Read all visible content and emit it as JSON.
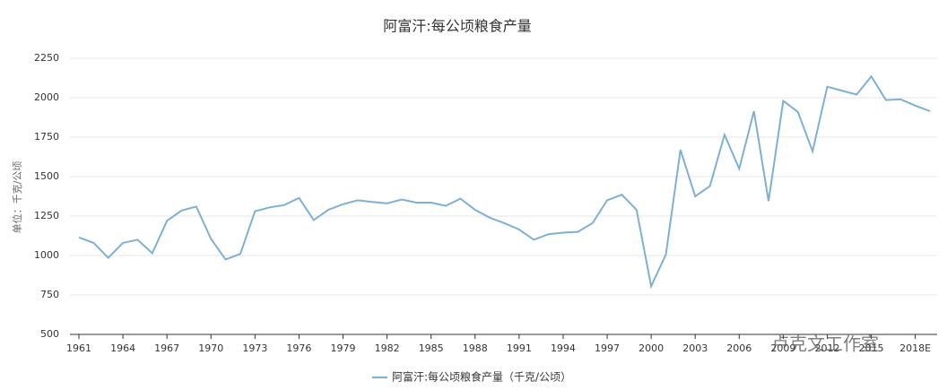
{
  "chart_data": {
    "type": "line",
    "title": "阿富汗:每公顷粮食产量",
    "y_axis_label": "单位：千克/公顷",
    "watermark": "卢克文工作室",
    "categories": [
      "1961",
      null,
      null,
      "1964",
      null,
      null,
      "1967",
      null,
      null,
      "1970",
      null,
      null,
      "1973",
      null,
      null,
      "1976",
      null,
      null,
      "1979",
      null,
      null,
      "1982",
      null,
      null,
      "1985",
      null,
      null,
      "1988",
      null,
      null,
      "1991",
      null,
      null,
      "1994",
      null,
      null,
      "1997",
      null,
      null,
      "2000",
      null,
      null,
      "2003",
      null,
      null,
      "2006",
      null,
      null,
      "2009",
      null,
      null,
      "2012",
      null,
      null,
      "2015",
      null,
      null,
      "2018E",
      null
    ],
    "series": [
      {
        "name": "阿富汗:每公顷粮食产量（千克/公顷）",
        "color": "#7eb0d5",
        "values": [
          1115,
          1080,
          985,
          1080,
          1100,
          1015,
          1220,
          1285,
          1310,
          1105,
          975,
          1010,
          1280,
          1305,
          1320,
          1365,
          1225,
          1290,
          1325,
          1350,
          1340,
          1330,
          1355,
          1335,
          1335,
          1315,
          1360,
          1290,
          1240,
          1205,
          1165,
          1100,
          1135,
          1145,
          1150,
          1205,
          1350,
          1385,
          1290,
          805,
          1005,
          1670,
          1375,
          1440,
          1765,
          1550,
          1915,
          1345,
          1980,
          1910,
          1660,
          2070,
          2045,
          2020,
          2135,
          1985,
          1990,
          1950,
          1915
        ]
      }
    ],
    "ylim": [
      500,
      2250
    ],
    "yticks": [
      500,
      750,
      1000,
      1250,
      1500,
      1750,
      2000,
      2250
    ],
    "grid": true
  }
}
